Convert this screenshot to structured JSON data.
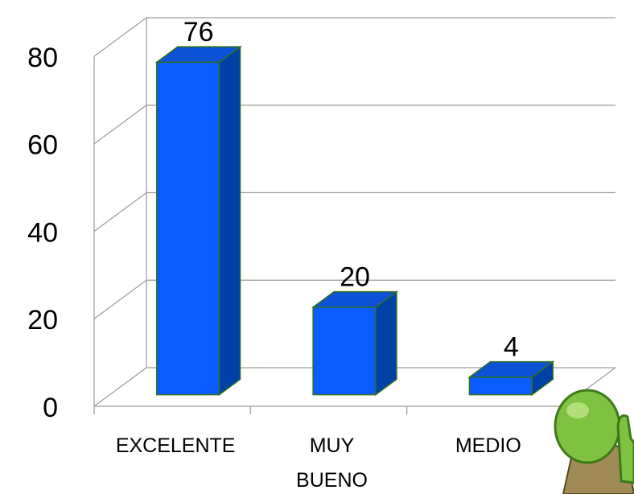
{
  "chart_data": {
    "type": "bar3d",
    "categories": [
      "EXCELENTE",
      "MUY BUENO",
      "MEDIO"
    ],
    "values": [
      76,
      20,
      4
    ],
    "color": "#0a5cff",
    "ylim": [
      0,
      80
    ],
    "yticks": [
      0,
      20,
      40,
      60,
      80
    ],
    "grid": true
  }
}
